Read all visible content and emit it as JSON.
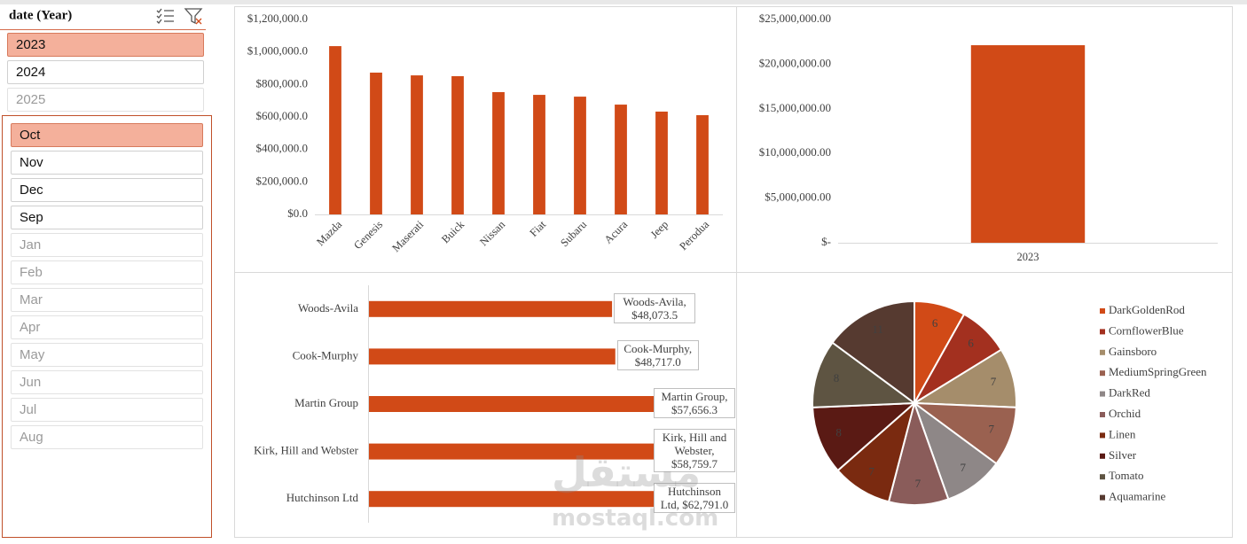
{
  "slicers": [
    {
      "title": "date (Year)",
      "items": [
        {
          "label": "2023",
          "state": "selected"
        },
        {
          "label": "2024",
          "state": "available"
        },
        {
          "label": "2025",
          "state": "empty"
        }
      ]
    },
    {
      "items": [
        {
          "label": "Oct",
          "state": "selected"
        },
        {
          "label": "Nov",
          "state": "available"
        },
        {
          "label": "Dec",
          "state": "available"
        },
        {
          "label": "Sep",
          "state": "available"
        },
        {
          "label": "Jan",
          "state": "empty"
        },
        {
          "label": "Feb",
          "state": "empty"
        },
        {
          "label": "Mar",
          "state": "empty"
        },
        {
          "label": "Apr",
          "state": "empty"
        },
        {
          "label": "May",
          "state": "empty"
        },
        {
          "label": "Jun",
          "state": "empty"
        },
        {
          "label": "Jul",
          "state": "empty"
        },
        {
          "label": "Aug",
          "state": "empty"
        }
      ]
    }
  ],
  "chart_data": [
    {
      "type": "bar",
      "categories": [
        "Mazda",
        "Genesis",
        "Maserati",
        "Buick",
        "Nissan",
        "Fiat",
        "Subaru",
        "Acura",
        "Jeep",
        "Perodua"
      ],
      "values": [
        1036000,
        873000,
        856000,
        851000,
        753000,
        736000,
        725000,
        676000,
        633000,
        611000
      ],
      "color": "#d14a17",
      "x_label_rotation": -45,
      "grid": false,
      "ylim": [
        0,
        1200000
      ],
      "yticks": [
        {
          "value": 0,
          "label": "$0.0"
        },
        {
          "value": 200000,
          "label": "$200,000.0"
        },
        {
          "value": 400000,
          "label": "$400,000.0"
        },
        {
          "value": 600000,
          "label": "$600,000.0"
        },
        {
          "value": 800000,
          "label": "$800,000.0"
        },
        {
          "value": 1000000,
          "label": "$1,000,000.0"
        },
        {
          "value": 1200000,
          "label": "$1,200,000.0"
        }
      ]
    },
    {
      "type": "bar",
      "categories": [
        "2023"
      ],
      "values": [
        22120000
      ],
      "color": "#d14a17",
      "x_label_rotation": 0,
      "grid": false,
      "ylim": [
        0,
        25000000
      ],
      "yticks": [
        {
          "value": 0,
          "label": "$-"
        },
        {
          "value": 5000000,
          "label": "$5,000,000.00"
        },
        {
          "value": 10000000,
          "label": "$10,000,000.00"
        },
        {
          "value": 15000000,
          "label": "$15,000,000.00"
        },
        {
          "value": 20000000,
          "label": "$20,000,000.00"
        },
        {
          "value": 25000000,
          "label": "$25,000,000.00"
        }
      ]
    },
    {
      "type": "barh",
      "categories": [
        "Woods-Avila",
        "Cook-Murphy",
        "Martin Group",
        "Kirk, Hill and Webster",
        "Hutchinson Ltd"
      ],
      "values": [
        48073.5,
        48717.0,
        57656.3,
        58759.7,
        62791.0
      ],
      "value_labels": [
        "Woods-Avila, $48,073.5",
        "Cook-Murphy, $48,717.0",
        "Martin Group, $57,656.3",
        "Kirk, Hill and Webster, $58,759.7",
        "Hutchinson Ltd, $62,791.0"
      ],
      "color": "#d14a17"
    },
    {
      "type": "pie",
      "categories": [
        "DarkGoldenRod",
        "CornflowerBlue",
        "Gainsboro",
        "MediumSpringGreen",
        "DarkRed",
        "Orchid",
        "Linen",
        "Silver",
        "Tomato",
        "Aquamarine"
      ],
      "values": [
        6,
        6,
        7,
        7,
        7,
        7,
        7,
        8,
        8,
        11
      ],
      "colors": [
        "#d14a17",
        "#a3301f",
        "#a58d6b",
        "#9a6150",
        "#8e8787",
        "#8a5c5a",
        "#7a2a10",
        "#5a1a14",
        "#5e5442",
        "#563a30"
      ],
      "legend": "right"
    }
  ],
  "watermark": [
    "مستقل",
    "mostaql.com"
  ]
}
